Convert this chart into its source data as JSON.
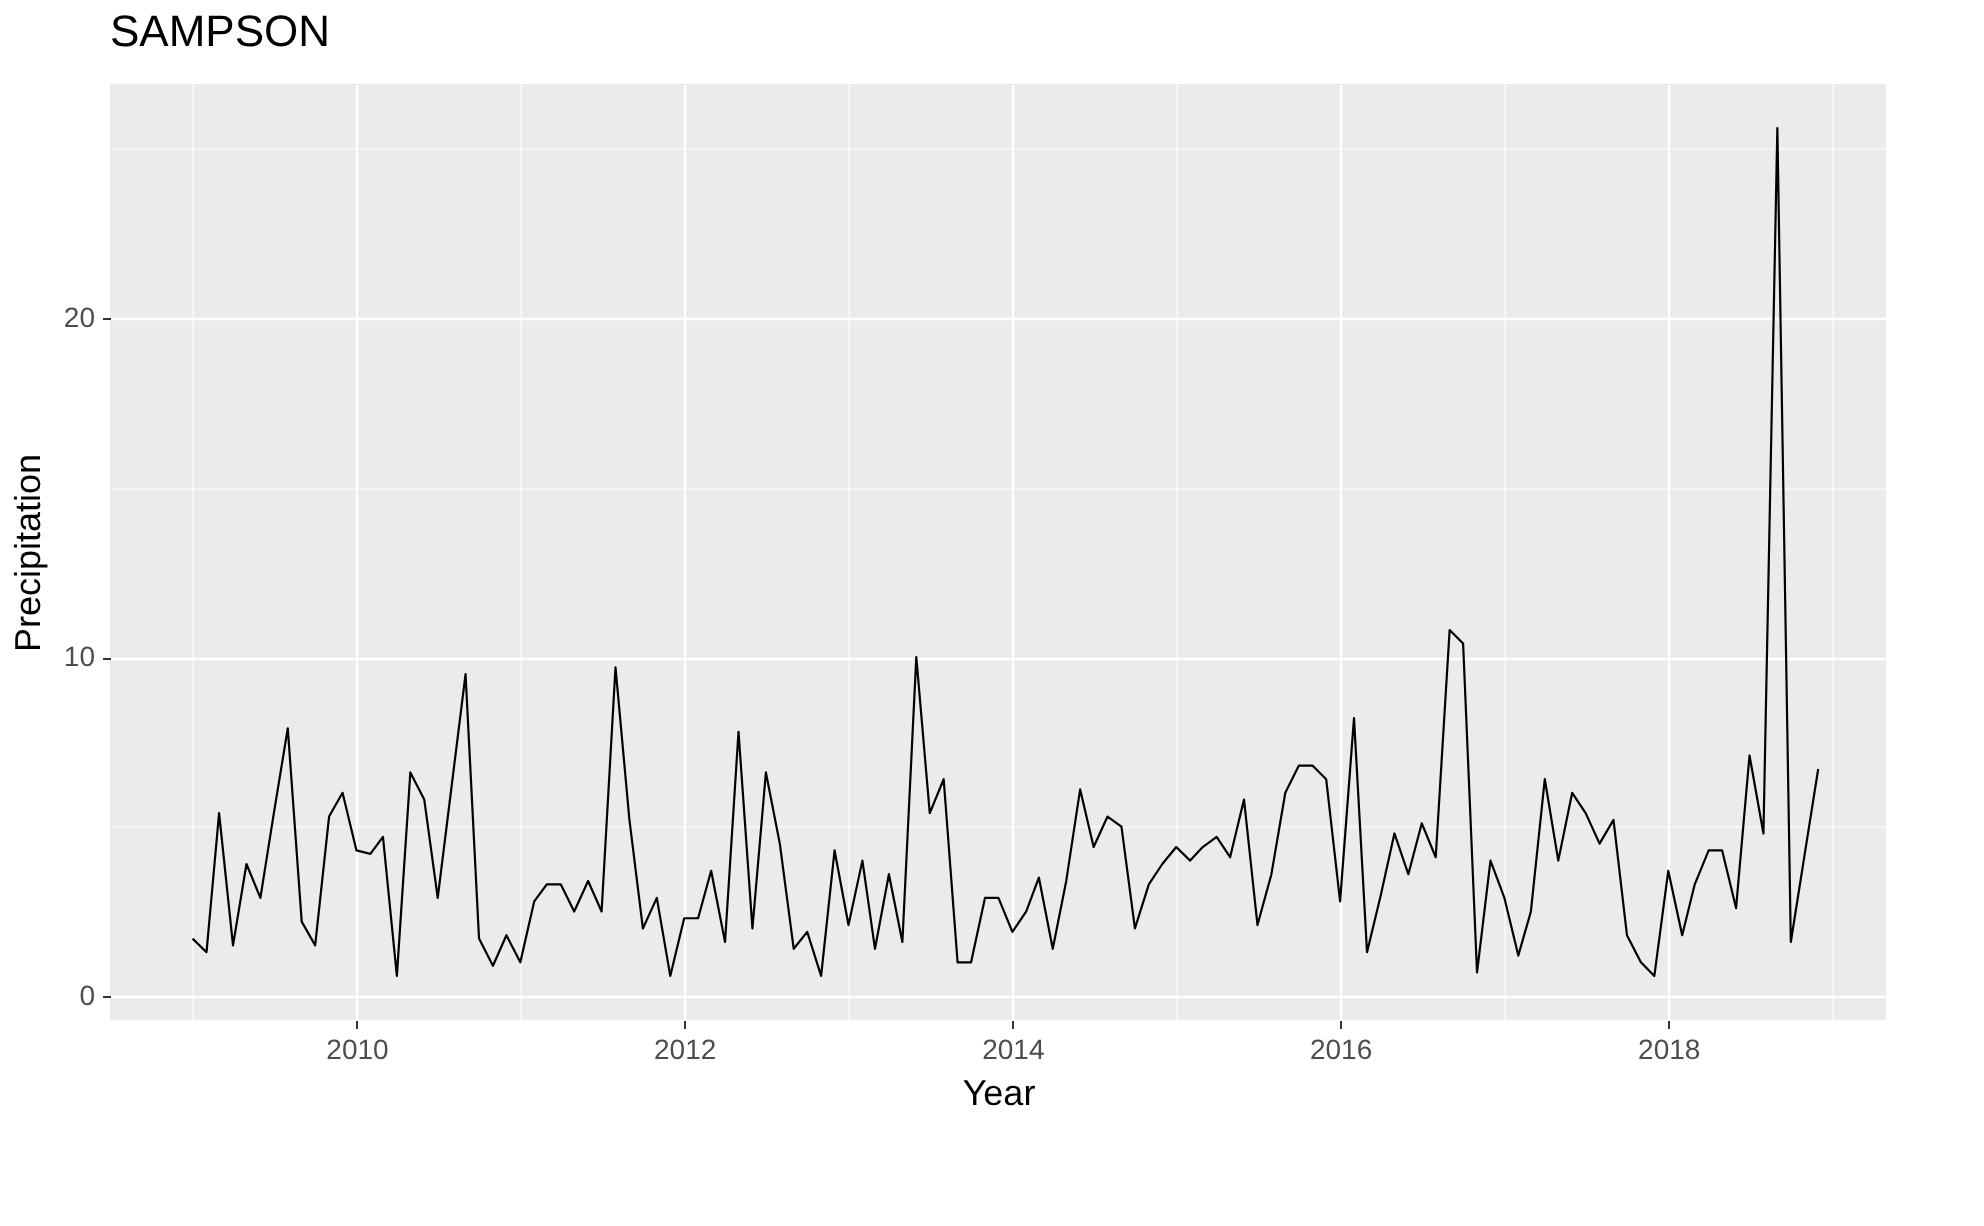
{
  "chart_data": {
    "type": "line",
    "title": "SAMPSON",
    "xlabel": "Year",
    "ylabel": "Precipitation",
    "x": [
      "2009-01",
      "2009-02",
      "2009-03",
      "2009-04",
      "2009-05",
      "2009-06",
      "2009-07",
      "2009-08",
      "2009-09",
      "2009-10",
      "2009-11",
      "2009-12",
      "2010-01",
      "2010-02",
      "2010-03",
      "2010-04",
      "2010-05",
      "2010-06",
      "2010-07",
      "2010-08",
      "2010-09",
      "2010-10",
      "2010-11",
      "2010-12",
      "2011-01",
      "2011-02",
      "2011-03",
      "2011-04",
      "2011-05",
      "2011-06",
      "2011-07",
      "2011-08",
      "2011-09",
      "2011-10",
      "2011-11",
      "2011-12",
      "2012-01",
      "2012-02",
      "2012-03",
      "2012-04",
      "2012-05",
      "2012-06",
      "2012-07",
      "2012-08",
      "2012-09",
      "2012-10",
      "2012-11",
      "2012-12",
      "2013-01",
      "2013-02",
      "2013-03",
      "2013-04",
      "2013-05",
      "2013-06",
      "2013-07",
      "2013-08",
      "2013-09",
      "2013-10",
      "2013-11",
      "2013-12",
      "2014-01",
      "2014-02",
      "2014-03",
      "2014-04",
      "2014-05",
      "2014-06",
      "2014-07",
      "2014-08",
      "2014-09",
      "2014-10",
      "2014-11",
      "2014-12",
      "2015-01",
      "2015-02",
      "2015-03",
      "2015-04",
      "2015-05",
      "2015-06",
      "2015-07",
      "2015-08",
      "2015-09",
      "2015-10",
      "2015-11",
      "2015-12",
      "2016-01",
      "2016-02",
      "2016-03",
      "2016-04",
      "2016-05",
      "2016-06",
      "2016-07",
      "2016-08",
      "2016-09",
      "2016-10",
      "2016-11",
      "2016-12",
      "2017-01",
      "2017-02",
      "2017-03",
      "2017-04",
      "2017-05",
      "2017-06",
      "2017-07",
      "2017-08",
      "2017-09",
      "2017-10",
      "2017-11",
      "2017-12",
      "2018-01",
      "2018-02",
      "2018-03",
      "2018-04",
      "2018-05",
      "2018-06",
      "2018-07",
      "2018-08",
      "2018-09",
      "2018-10",
      "2018-11",
      "2018-12"
    ],
    "series": [
      {
        "color": "#000000",
        "values": [
          1.7,
          1.3,
          5.4,
          1.5,
          3.9,
          2.9,
          5.4,
          7.9,
          2.2,
          1.5,
          5.3,
          6.0,
          4.3,
          4.2,
          4.7,
          0.6,
          6.6,
          5.8,
          2.9,
          6.2,
          9.5,
          1.7,
          0.9,
          1.8,
          1.0,
          2.8,
          3.3,
          3.3,
          2.5,
          3.4,
          2.5,
          9.7,
          5.2,
          2.0,
          2.9,
          0.6,
          2.3,
          2.3,
          3.7,
          1.6,
          7.8,
          2.0,
          6.6,
          4.5,
          1.4,
          1.9,
          0.6,
          4.3,
          2.1,
          4.0,
          1.4,
          3.6,
          1.6,
          10.0,
          5.4,
          6.4,
          1.0,
          1.0,
          2.9,
          2.9,
          1.9,
          2.5,
          3.5,
          1.4,
          3.4,
          6.1,
          4.4,
          5.3,
          5.0,
          2.0,
          3.3,
          3.9,
          4.4,
          4.0,
          4.4,
          4.7,
          4.1,
          5.8,
          2.1,
          3.6,
          6.0,
          6.8,
          6.8,
          6.4,
          2.8,
          8.2,
          1.3,
          3.0,
          4.8,
          3.6,
          5.1,
          4.1,
          10.8,
          10.4,
          0.7,
          4.0,
          2.9,
          1.2,
          2.5,
          6.4,
          4.0,
          6.0,
          5.4,
          4.5,
          5.2,
          1.8,
          1.0,
          0.6,
          3.7,
          1.8,
          3.3,
          4.3,
          4.3,
          2.6,
          7.1,
          4.8,
          25.6,
          1.6,
          4.2,
          6.7
        ]
      }
    ],
    "xlim": [
      "2008-07",
      "2019-05"
    ],
    "xticks": [
      {
        "value": "2009-01",
        "label": null
      },
      {
        "value": "2010-01",
        "label": "2010"
      },
      {
        "value": "2011-01",
        "label": null
      },
      {
        "value": "2012-01",
        "label": "2012"
      },
      {
        "value": "2013-01",
        "label": null
      },
      {
        "value": "2014-01",
        "label": "2014"
      },
      {
        "value": "2015-01",
        "label": null
      },
      {
        "value": "2016-01",
        "label": "2016"
      },
      {
        "value": "2017-01",
        "label": null
      },
      {
        "value": "2018-01",
        "label": "2018"
      },
      {
        "value": "2019-01",
        "label": null
      }
    ],
    "ylim": [
      -0.7,
      26.9
    ],
    "yticks": [
      0,
      {
        "value": 5,
        "label": null
      },
      10,
      {
        "value": 15,
        "label": null
      },
      20,
      {
        "value": 25,
        "label": null
      }
    ],
    "grid": true,
    "line_style": "solid",
    "marker": "none"
  }
}
